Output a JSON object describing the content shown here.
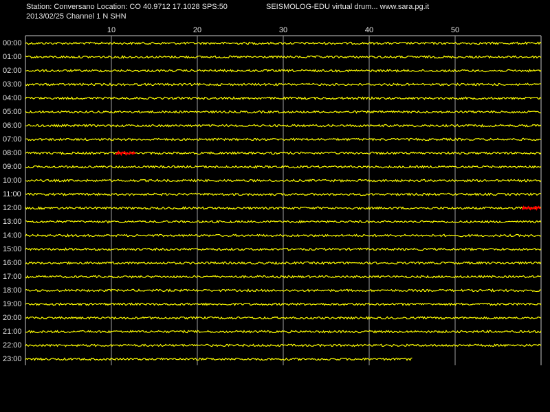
{
  "chart_data": {
    "type": "helicorder",
    "header_left": "Station: Conversano Location: CO 40.9712 17.1028 SPS:50",
    "header_right": "SEISMOLOG-EDU virtual drum... www.sara.pg.it",
    "subheader": "2013/02/25  Channel 1 N SHN",
    "xlim": [
      0,
      60
    ],
    "xticks": [
      10,
      20,
      30,
      40,
      50
    ],
    "rows": [
      "00:00",
      "01:00",
      "02:00",
      "03:00",
      "04:00",
      "05:00",
      "06:00",
      "07:00",
      "08:00",
      "09:00",
      "10:00",
      "11:00",
      "12:00",
      "13:00",
      "14:00",
      "15:00",
      "16:00",
      "17:00",
      "18:00",
      "19:00",
      "20:00",
      "21:00",
      "22:00",
      "23:00"
    ],
    "last_trace_end": 45,
    "trace_color": "#ffff00",
    "events": [
      {
        "row": 8,
        "x": [
          10.5,
          12.8
        ],
        "color": "#ff0000"
      },
      {
        "row": 12,
        "x": [
          57.8,
          60
        ],
        "color": "#ff0000"
      }
    ]
  }
}
